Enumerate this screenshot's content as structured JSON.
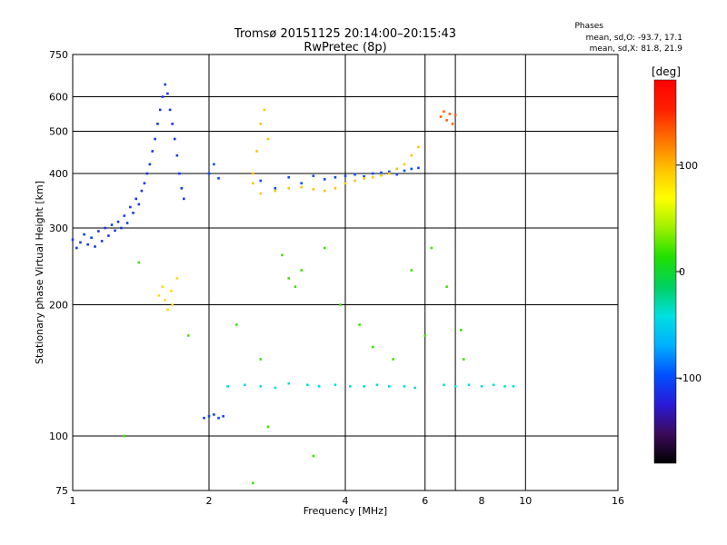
{
  "title": "Tromsø 20151125 20:14:00–20:15:43",
  "subtitle": "RwPretec (8p)",
  "stats": {
    "heading": "Phases",
    "line_o": "mean, sd,O: -93.7, 17.1",
    "line_x": "mean, sd,X:  81.8, 21.9"
  },
  "colorbar": {
    "label": "[deg]",
    "ticks": [
      100,
      0,
      -100
    ],
    "range": [
      -180,
      180
    ],
    "stops": [
      "#000000",
      "#3c0a5a",
      "#2a1ad8",
      "#0050ff",
      "#00b0ff",
      "#00e0e0",
      "#00d060",
      "#20e000",
      "#a0f000",
      "#ffff00",
      "#ffc000",
      "#ff7000",
      "#ff2000",
      "#ff0000"
    ]
  },
  "chart_data": {
    "type": "scatter",
    "xlabel": "Frequency [MHz]",
    "ylabel": "Stationary phase Virtual Height [km]",
    "x_scale": "log",
    "y_scale": "log",
    "xlim": [
      1,
      16
    ],
    "ylim": [
      75,
      750
    ],
    "xticks": [
      1,
      2,
      4,
      6,
      8,
      10,
      16
    ],
    "xtick_labels": [
      "1",
      "2",
      "4",
      "6",
      "8",
      "10",
      "16"
    ],
    "xgrid": [
      2,
      4,
      6,
      7,
      10
    ],
    "yticks": [
      75,
      100,
      200,
      300,
      400,
      500,
      600,
      750
    ],
    "yticks_labels": [
      "75",
      "100",
      "200",
      "300",
      "400",
      "500",
      "600",
      "750"
    ],
    "ygrid": [
      100,
      200,
      300,
      400,
      500,
      600
    ],
    "grid": true,
    "series": [
      {
        "key": "o_trace_low",
        "color_value": -110,
        "points": [
          [
            1.0,
            282
          ],
          [
            1.02,
            270
          ],
          [
            1.04,
            278
          ],
          [
            1.06,
            290
          ],
          [
            1.08,
            275
          ],
          [
            1.1,
            285
          ],
          [
            1.12,
            272
          ],
          [
            1.14,
            295
          ],
          [
            1.16,
            280
          ],
          [
            1.18,
            300
          ],
          [
            1.2,
            288
          ],
          [
            1.22,
            305
          ],
          [
            1.24,
            296
          ],
          [
            1.26,
            310
          ],
          [
            1.28,
            300
          ],
          [
            1.3,
            320
          ],
          [
            1.32,
            308
          ],
          [
            1.34,
            335
          ],
          [
            1.36,
            325
          ],
          [
            1.38,
            350
          ],
          [
            1.4,
            340
          ],
          [
            1.42,
            365
          ],
          [
            1.44,
            380
          ],
          [
            1.46,
            400
          ],
          [
            1.48,
            420
          ],
          [
            1.5,
            450
          ],
          [
            1.52,
            480
          ],
          [
            1.54,
            520
          ],
          [
            1.56,
            560
          ],
          [
            1.58,
            600
          ],
          [
            1.6,
            640
          ],
          [
            1.62,
            610
          ],
          [
            1.64,
            560
          ],
          [
            1.66,
            520
          ],
          [
            1.68,
            480
          ],
          [
            1.7,
            440
          ],
          [
            1.72,
            400
          ],
          [
            1.74,
            370
          ],
          [
            1.76,
            350
          ]
        ]
      },
      {
        "key": "o_trace_mid",
        "color_value": -100,
        "points": [
          [
            2.0,
            400
          ],
          [
            2.05,
            420
          ],
          [
            2.1,
            390
          ],
          [
            2.6,
            385
          ],
          [
            2.8,
            370
          ],
          [
            3.0,
            392
          ],
          [
            3.2,
            380
          ],
          [
            3.4,
            395
          ],
          [
            3.6,
            388
          ],
          [
            3.8,
            392
          ],
          [
            4.0,
            395
          ],
          [
            4.2,
            398
          ],
          [
            4.4,
            394
          ],
          [
            4.6,
            400
          ],
          [
            4.8,
            402
          ],
          [
            5.0,
            404
          ],
          [
            5.2,
            398
          ],
          [
            5.4,
            406
          ],
          [
            5.6,
            410
          ],
          [
            5.8,
            412
          ]
        ]
      },
      {
        "key": "x_trace_low",
        "color_value": 85,
        "points": [
          [
            1.55,
            210
          ],
          [
            1.6,
            205
          ],
          [
            1.65,
            215
          ],
          [
            1.62,
            195
          ],
          [
            1.7,
            230
          ],
          [
            1.58,
            220
          ],
          [
            1.66,
            200
          ]
        ]
      },
      {
        "key": "x_trace_mid",
        "color_value": 95,
        "points": [
          [
            2.5,
            400
          ],
          [
            2.55,
            450
          ],
          [
            2.6,
            520
          ],
          [
            2.65,
            560
          ],
          [
            2.7,
            480
          ],
          [
            2.5,
            380
          ],
          [
            2.6,
            360
          ],
          [
            2.8,
            365
          ],
          [
            3.0,
            370
          ],
          [
            3.2,
            372
          ],
          [
            3.4,
            368
          ],
          [
            3.6,
            365
          ],
          [
            3.8,
            370
          ],
          [
            4.0,
            380
          ],
          [
            4.2,
            385
          ],
          [
            4.4,
            390
          ],
          [
            4.6,
            392
          ],
          [
            4.8,
            396
          ],
          [
            5.0,
            400
          ],
          [
            5.2,
            410
          ],
          [
            5.4,
            420
          ],
          [
            5.6,
            440
          ],
          [
            5.8,
            460
          ]
        ]
      },
      {
        "key": "x_trace_high",
        "color_value": 130,
        "points": [
          [
            6.5,
            540
          ],
          [
            6.6,
            555
          ],
          [
            6.7,
            530
          ],
          [
            6.8,
            548
          ],
          [
            6.9,
            520
          ],
          [
            7.0,
            545
          ]
        ]
      },
      {
        "key": "e_layer_clutter",
        "color_value": -40,
        "points": [
          [
            2.2,
            130
          ],
          [
            2.4,
            131
          ],
          [
            2.6,
            130
          ],
          [
            2.8,
            129
          ],
          [
            3.0,
            132
          ],
          [
            3.3,
            131
          ],
          [
            3.5,
            130
          ],
          [
            3.8,
            131
          ],
          [
            4.1,
            130
          ],
          [
            4.4,
            130
          ],
          [
            4.7,
            131
          ],
          [
            5.0,
            130
          ],
          [
            5.4,
            130
          ],
          [
            5.7,
            129
          ],
          [
            6.6,
            131
          ],
          [
            7.0,
            130
          ],
          [
            7.5,
            131
          ],
          [
            8.0,
            130
          ],
          [
            8.5,
            131
          ],
          [
            9.0,
            130
          ],
          [
            9.4,
            130
          ]
        ]
      },
      {
        "key": "low_blue",
        "color_value": -105,
        "points": [
          [
            1.95,
            110
          ],
          [
            2.0,
            111
          ],
          [
            2.05,
            112
          ],
          [
            2.1,
            110
          ],
          [
            2.15,
            111
          ]
        ]
      },
      {
        "key": "sparse_noise",
        "color_value": 20,
        "points": [
          [
            1.4,
            250
          ],
          [
            1.8,
            170
          ],
          [
            2.3,
            180
          ],
          [
            2.6,
            150
          ],
          [
            2.7,
            105
          ],
          [
            2.9,
            260
          ],
          [
            3.0,
            230
          ],
          [
            3.1,
            220
          ],
          [
            3.2,
            240
          ],
          [
            3.4,
            90
          ],
          [
            3.6,
            270
          ],
          [
            3.9,
            200
          ],
          [
            4.3,
            180
          ],
          [
            4.6,
            160
          ],
          [
            5.1,
            150
          ],
          [
            5.6,
            240
          ],
          [
            6.0,
            170
          ],
          [
            6.2,
            270
          ],
          [
            6.7,
            220
          ],
          [
            7.2,
            175
          ],
          [
            7.3,
            150
          ],
          [
            2.5,
            78
          ],
          [
            1.3,
            100
          ]
        ]
      }
    ]
  }
}
